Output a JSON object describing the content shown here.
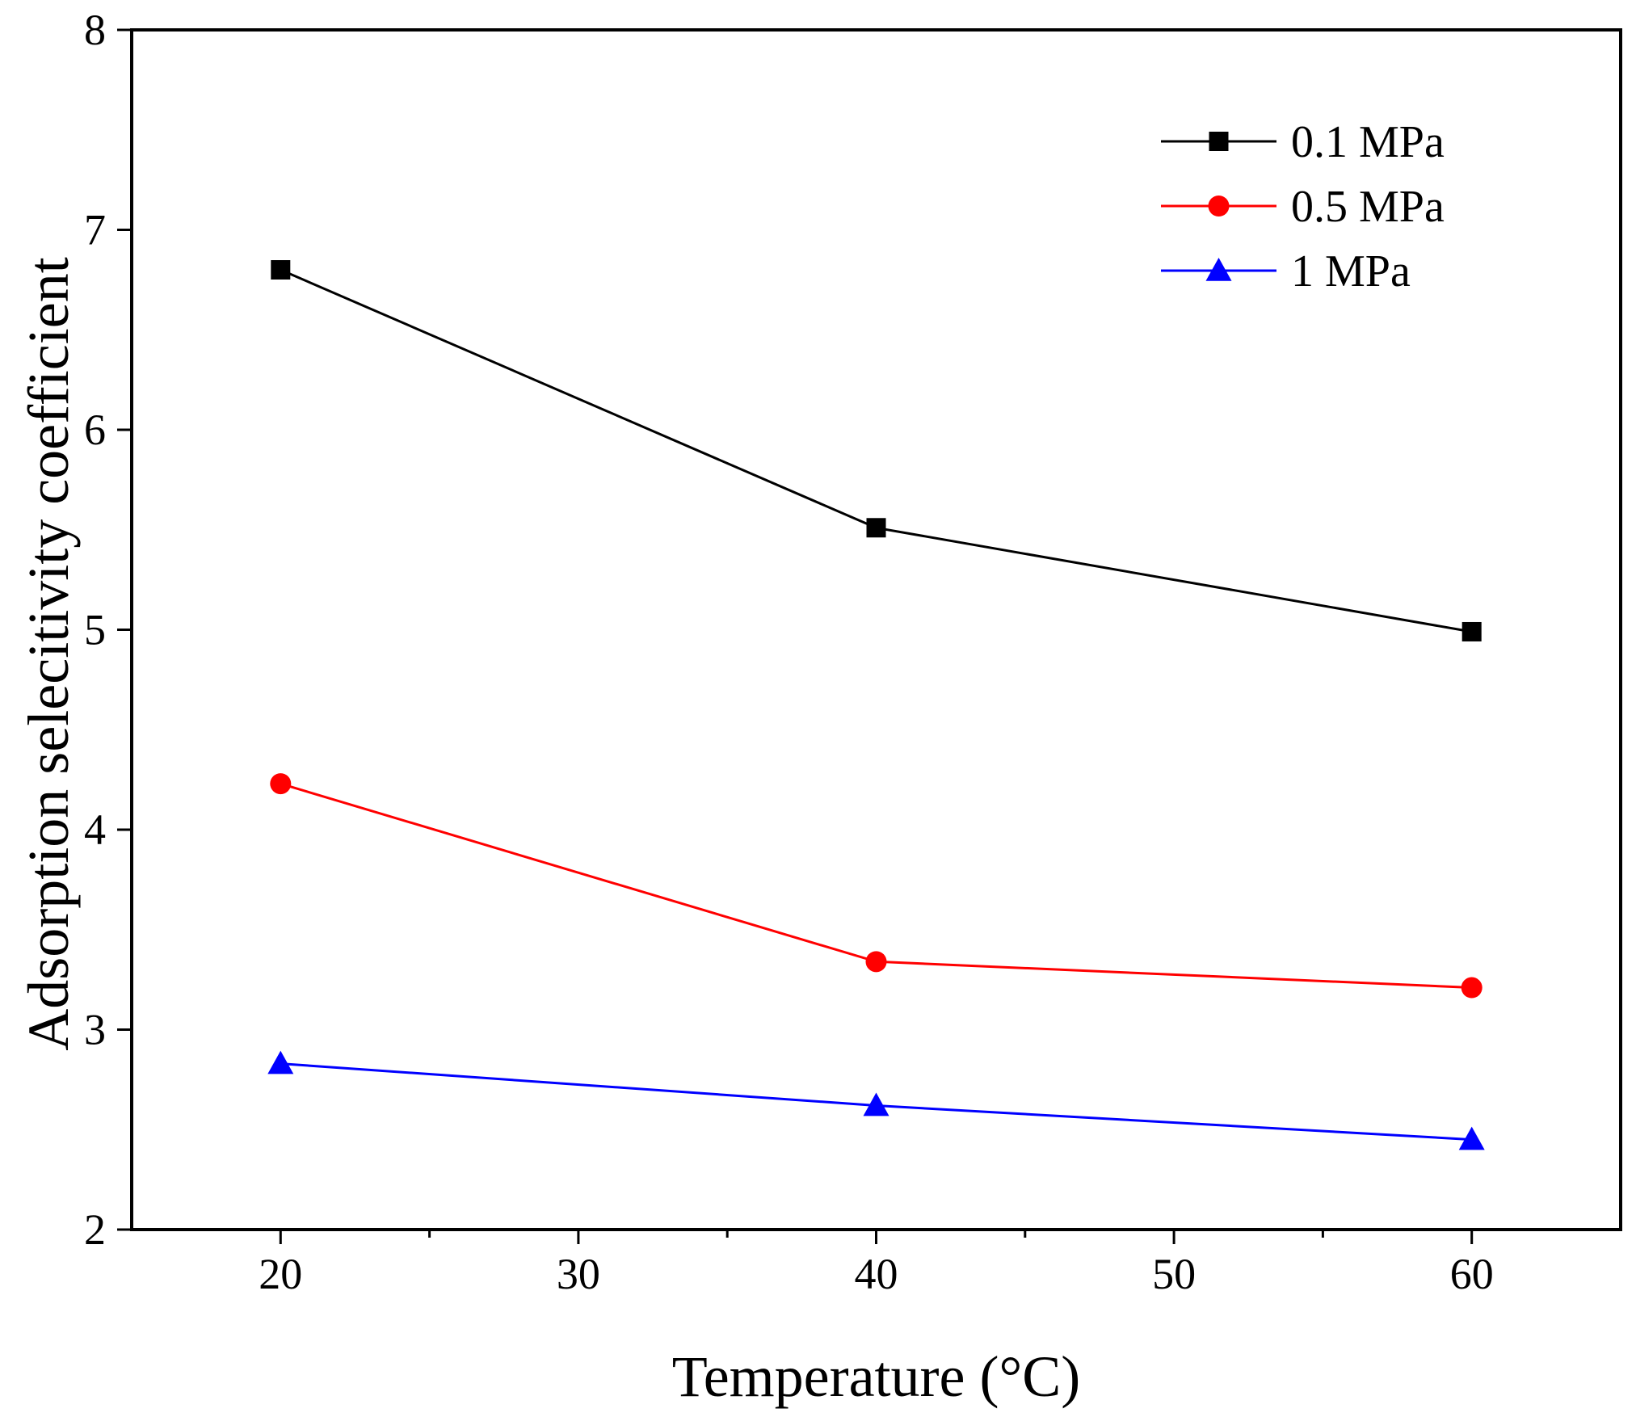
{
  "chart_data": {
    "type": "line",
    "title": "",
    "xlabel": "Temperature (°C)",
    "ylabel": "Adsorption selecitivity coefficient",
    "xlim": [
      15,
      65
    ],
    "ylim": [
      2,
      8
    ],
    "xticks": [
      20,
      30,
      40,
      50,
      60
    ],
    "xtick_labels": [
      "20",
      "30",
      "40",
      "50",
      "60"
    ],
    "xminor_ticks": [
      25,
      35,
      45,
      55
    ],
    "yticks": [
      2,
      3,
      4,
      5,
      6,
      7,
      8
    ],
    "ytick_labels": [
      "2",
      "3",
      "4",
      "5",
      "6",
      "7",
      "8"
    ],
    "legend_position": "top-right",
    "grid": false,
    "x": [
      20,
      40,
      60
    ],
    "series": [
      {
        "name": "0.1 MPa",
        "marker": "square",
        "color": "#000000",
        "values": [
          6.8,
          5.51,
          4.99
        ]
      },
      {
        "name": "0.5 MPa",
        "marker": "circle",
        "color": "#ff0000",
        "values": [
          4.23,
          3.34,
          3.21
        ]
      },
      {
        "name": "1 MPa",
        "marker": "triangle",
        "color": "#0000ff",
        "values": [
          2.83,
          2.62,
          2.45
        ]
      }
    ]
  }
}
